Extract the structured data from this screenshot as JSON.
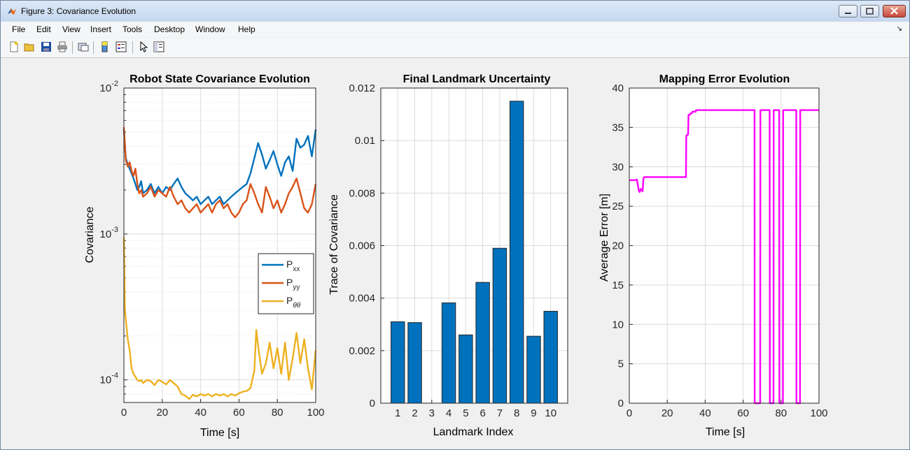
{
  "window": {
    "title": "Figure 3: Covariance Evolution"
  },
  "menu": [
    "File",
    "Edit",
    "View",
    "Insert",
    "Tools",
    "Desktop",
    "Window",
    "Help"
  ],
  "toolbar": {
    "icons": [
      "new-figure-icon",
      "open-file-icon",
      "save-icon",
      "print-icon",
      "link-plot-icon",
      "colorbar-icon",
      "legend-icon",
      "pointer-icon",
      "property-inspector-icon"
    ]
  },
  "colors": {
    "pxx": "#0072BD",
    "pyy": "#D95319",
    "ptt": "#EDB120",
    "bar": "#0072BD",
    "mapping": "#FF00FF"
  },
  "chart_data": [
    {
      "type": "line",
      "title": "Robot State Covariance Evolution",
      "xlabel": "Time [s]",
      "ylabel": "Covariance",
      "yscale": "log",
      "xlim": [
        0,
        100
      ],
      "ylim": [
        7e-05,
        0.01
      ],
      "xticks": [
        "0",
        "20",
        "40",
        "60",
        "80",
        "100"
      ],
      "yticks": [
        {
          "base": "10",
          "exp": "-2",
          "value": 0.01
        },
        {
          "base": "10",
          "exp": "-3",
          "value": 0.001
        },
        {
          "base": "10",
          "exp": "-4",
          "value": 0.0001
        }
      ],
      "grid": true,
      "legend_position": "lower-right",
      "series": [
        {
          "name": "P_xx",
          "label": "P",
          "sub": "xx",
          "color": "#0072BD",
          "x": [
            0,
            1,
            2,
            3,
            4,
            5,
            6,
            7,
            8,
            9,
            10,
            12,
            14,
            16,
            18,
            20,
            22,
            24,
            26,
            28,
            30,
            32,
            34,
            36,
            38,
            40,
            42,
            44,
            46,
            48,
            50,
            52,
            54,
            56,
            58,
            60,
            62,
            64,
            66,
            68,
            70,
            72,
            74,
            76,
            78,
            80,
            82,
            84,
            86,
            88,
            90,
            92,
            94,
            96,
            98,
            100
          ],
          "y": [
            0.0052,
            0.0033,
            0.003,
            0.0028,
            0.0026,
            0.0024,
            0.0022,
            0.002,
            0.0021,
            0.0023,
            0.0019,
            0.002,
            0.0022,
            0.0019,
            0.0021,
            0.0019,
            0.0021,
            0.002,
            0.0022,
            0.0024,
            0.0021,
            0.0019,
            0.0018,
            0.0017,
            0.0018,
            0.0016,
            0.0017,
            0.0018,
            0.0016,
            0.0017,
            0.0018,
            0.0016,
            0.0017,
            0.0018,
            0.0019,
            0.002,
            0.0021,
            0.0022,
            0.0026,
            0.0033,
            0.0042,
            0.0035,
            0.0028,
            0.0032,
            0.0037,
            0.003,
            0.0025,
            0.0031,
            0.0034,
            0.0027,
            0.0045,
            0.0039,
            0.0041,
            0.0047,
            0.0034,
            0.0052
          ]
        },
        {
          "name": "P_yy",
          "label": "P",
          "sub": "yy",
          "color": "#D95319",
          "x": [
            0,
            1,
            2,
            3,
            4,
            5,
            6,
            7,
            8,
            9,
            10,
            12,
            14,
            16,
            18,
            20,
            22,
            24,
            26,
            28,
            30,
            32,
            34,
            36,
            38,
            40,
            42,
            44,
            46,
            48,
            50,
            52,
            54,
            56,
            58,
            60,
            62,
            64,
            66,
            68,
            70,
            72,
            74,
            76,
            78,
            80,
            82,
            84,
            86,
            88,
            90,
            92,
            94,
            96,
            98,
            100
          ],
          "y": [
            0.0054,
            0.0032,
            0.0029,
            0.0031,
            0.0027,
            0.0025,
            0.0028,
            0.0022,
            0.0019,
            0.002,
            0.0018,
            0.0019,
            0.0021,
            0.0018,
            0.002,
            0.0019,
            0.0018,
            0.0021,
            0.0018,
            0.0016,
            0.0017,
            0.0015,
            0.0014,
            0.0015,
            0.0016,
            0.0014,
            0.0015,
            0.0016,
            0.0014,
            0.0016,
            0.0017,
            0.0015,
            0.0016,
            0.0014,
            0.0013,
            0.0014,
            0.0016,
            0.0017,
            0.0022,
            0.0019,
            0.0016,
            0.0014,
            0.0021,
            0.0018,
            0.0015,
            0.0017,
            0.0014,
            0.0016,
            0.0019,
            0.0021,
            0.0024,
            0.0019,
            0.0015,
            0.0014,
            0.0016,
            0.0022
          ]
        },
        {
          "name": "P_theta",
          "label": "P",
          "sub": "θθ",
          "color": "#EDB120",
          "x": [
            0,
            0.5,
            1,
            2,
            3,
            4,
            5,
            6,
            7,
            8,
            9,
            10,
            12,
            14,
            16,
            18,
            20,
            22,
            24,
            26,
            28,
            30,
            32,
            34,
            36,
            38,
            40,
            42,
            44,
            46,
            48,
            50,
            52,
            54,
            56,
            58,
            60,
            62,
            64,
            66,
            68,
            69,
            70,
            72,
            74,
            76,
            78,
            80,
            82,
            84,
            86,
            88,
            90,
            92,
            94,
            96,
            98,
            100
          ],
          "y": [
            0.00095,
            0.0003,
            0.00026,
            0.00019,
            0.00016,
            0.00012,
            0.00011,
            0.000105,
            0.0001,
            9.8e-05,
            0.0001,
            9.5e-05,
            0.0001,
            9.8e-05,
            9.2e-05,
            0.0001,
            9.7e-05,
            9.3e-05,
            0.0001,
            9.5e-05,
            9e-05,
            8e-05,
            7.8e-05,
            7.4e-05,
            7.9e-05,
            7.7e-05,
            8e-05,
            7.8e-05,
            8e-05,
            7.7e-05,
            8e-05,
            7.8e-05,
            8e-05,
            7.7e-05,
            8e-05,
            7.8e-05,
            8.1e-05,
            8.3e-05,
            8.4e-05,
            8.8e-05,
            0.000115,
            0.00022,
            0.00017,
            0.00011,
            0.00013,
            0.00018,
            0.00012,
            0.000165,
            0.00011,
            0.00018,
            0.0001,
            0.00014,
            0.00021,
            0.00013,
            0.00019,
            0.00012,
            8.6e-05,
            0.00016
          ]
        }
      ]
    },
    {
      "type": "bar",
      "title": "Final Landmark Uncertainty",
      "xlabel": "Landmark Index",
      "ylabel": "Trace of Covariance",
      "categories": [
        "1",
        "2",
        "3",
        "4",
        "5",
        "6",
        "7",
        "8",
        "9",
        "10"
      ],
      "values": [
        0.0031,
        0.00307,
        0,
        0.00382,
        0.0026,
        0.0046,
        0.0059,
        0.0115,
        0.00255,
        0.0035
      ],
      "ylim": [
        0,
        0.012
      ],
      "yticks": [
        "0",
        "0.002",
        "0.004",
        "0.006",
        "0.008",
        "0.01",
        "0.012"
      ],
      "grid": true
    },
    {
      "type": "line",
      "title": "Mapping Error Evolution",
      "xlabel": "Time [s]",
      "ylabel": "Average Error [m]",
      "xlim": [
        0,
        100
      ],
      "ylim": [
        0,
        40
      ],
      "xticks": [
        "0",
        "20",
        "40",
        "60",
        "80",
        "100"
      ],
      "yticks": [
        "0",
        "5",
        "10",
        "15",
        "20",
        "25",
        "30",
        "35",
        "40"
      ],
      "grid": true,
      "series": [
        {
          "color": "#FF00FF",
          "x": [
            0,
            3,
            4,
            5,
            5.5,
            6,
            7,
            7.5,
            8,
            20,
            29.9,
            30,
            30.1,
            31,
            31.2,
            32,
            32.3,
            33,
            33.3,
            35,
            35.2,
            66,
            66.1,
            69,
            69.1,
            74,
            74.1,
            76,
            76.1,
            79,
            79.1,
            81,
            81.1,
            88,
            88.1,
            90,
            90.1,
            100
          ],
          "y": [
            28.3,
            28.3,
            28.4,
            27.0,
            26.8,
            27.2,
            26.9,
            28.6,
            28.7,
            28.7,
            28.7,
            33.5,
            34.0,
            34.1,
            36.6,
            36.6,
            36.8,
            36.8,
            37.0,
            37.0,
            37.2,
            37.2,
            0,
            0,
            37.2,
            37.2,
            0,
            0,
            37.2,
            37.2,
            0,
            0,
            37.2,
            37.2,
            0,
            0,
            37.2,
            37.2
          ]
        }
      ]
    }
  ]
}
